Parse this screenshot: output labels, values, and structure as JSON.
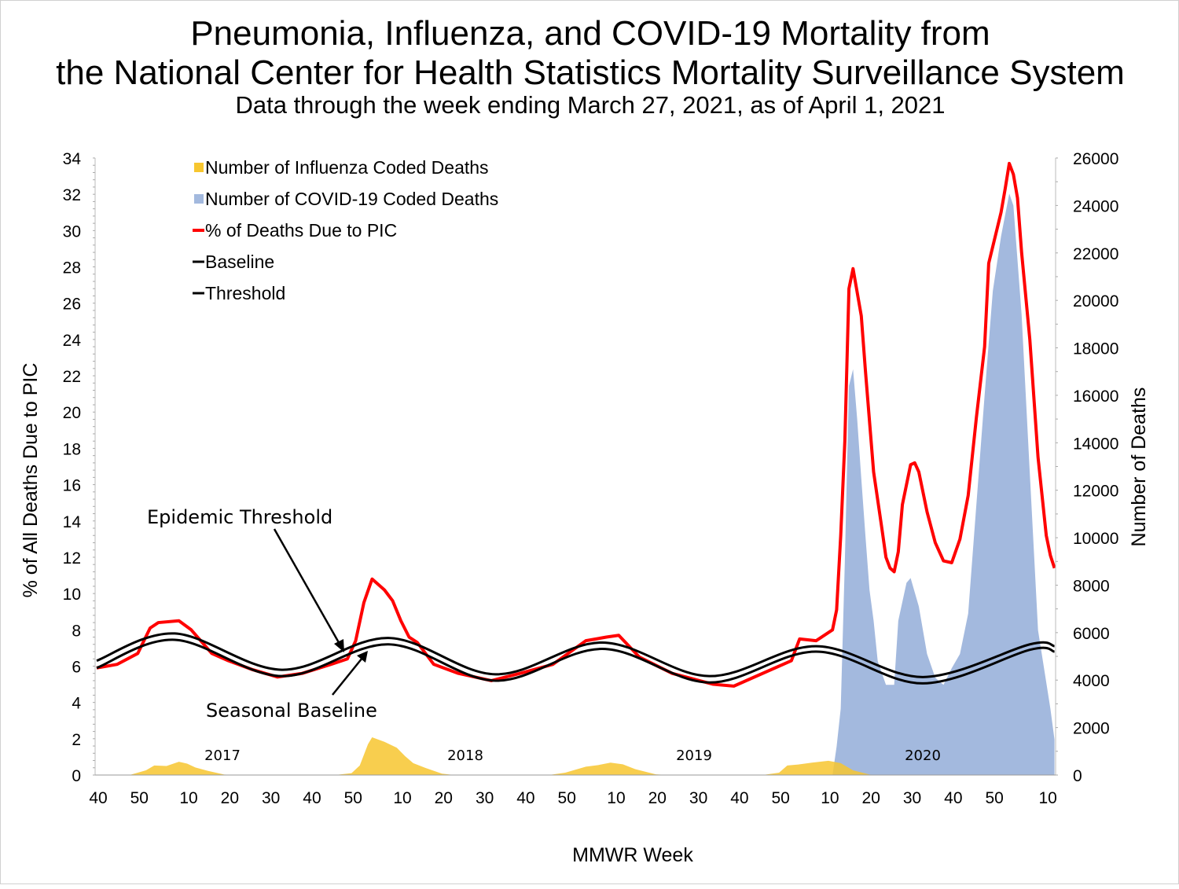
{
  "chart_data": {
    "type": "area+line",
    "title_line1": "Pneumonia, Influenza, and COVID-19 Mortality from",
    "title_line2": "the National Center for Health Statistics Mortality Surveillance System",
    "subtitle": "Data through the week ending March 27, 2021, as of April 1, 2021",
    "xlabel": "MMWR Week",
    "ylabel_left": "% of All Deaths Due to PIC",
    "ylabel_right": "Number of Deaths",
    "ylim_left": [
      0,
      34
    ],
    "yticks_left": [
      0,
      2,
      4,
      6,
      8,
      10,
      12,
      14,
      16,
      18,
      20,
      22,
      24,
      26,
      28,
      30,
      32,
      34
    ],
    "ylim_right": [
      0,
      26000
    ],
    "yticks_right": [
      0,
      2000,
      4000,
      6000,
      8000,
      10000,
      12000,
      14000,
      16000,
      18000,
      20000,
      22000,
      24000,
      26000
    ],
    "xlim": [
      "2016-40",
      "2021-12"
    ],
    "xticks": [
      {
        "x": "2016-40",
        "label": "40"
      },
      {
        "x": "2016-50",
        "label": "50"
      },
      {
        "x": "2017-10",
        "label": "10"
      },
      {
        "x": "2017-20",
        "label": "20"
      },
      {
        "x": "2017-30",
        "label": "30"
      },
      {
        "x": "2017-40",
        "label": "40"
      },
      {
        "x": "2017-50",
        "label": "50"
      },
      {
        "x": "2018-10",
        "label": "10"
      },
      {
        "x": "2018-20",
        "label": "20"
      },
      {
        "x": "2018-30",
        "label": "30"
      },
      {
        "x": "2018-40",
        "label": "40"
      },
      {
        "x": "2018-50",
        "label": "50"
      },
      {
        "x": "2019-10",
        "label": "10"
      },
      {
        "x": "2019-20",
        "label": "20"
      },
      {
        "x": "2019-30",
        "label": "30"
      },
      {
        "x": "2019-40",
        "label": "40"
      },
      {
        "x": "2019-50",
        "label": "50"
      },
      {
        "x": "2020-10",
        "label": "10"
      },
      {
        "x": "2020-20",
        "label": "20"
      },
      {
        "x": "2020-30",
        "label": "30"
      },
      {
        "x": "2020-40",
        "label": "40"
      },
      {
        "x": "2020-50",
        "label": "50"
      },
      {
        "x": "2021-10",
        "label": "10"
      }
    ],
    "year_labels": [
      "2017",
      "2018",
      "2019",
      "2020"
    ],
    "grid": false,
    "legend_placement": "top-left",
    "legend": [
      {
        "label": "Number of Influenza Coded Deaths",
        "kind": "area",
        "color": "#F7C62F"
      },
      {
        "label": "Number of COVID-19 Coded Deaths",
        "kind": "area",
        "color": "#A3B9DE"
      },
      {
        "label": "% of Deaths Due to PIC",
        "kind": "line",
        "color": "#FF0000"
      },
      {
        "label": "Baseline",
        "kind": "line",
        "color": "#000000"
      },
      {
        "label": "Threshold",
        "kind": "line",
        "color": "#000000"
      }
    ],
    "annotations": [
      {
        "text": "Epidemic Threshold",
        "points_to": "Threshold"
      },
      {
        "text": "Seasonal Baseline",
        "points_to": "Baseline"
      }
    ],
    "series": [
      {
        "name": "Number of COVID-19 Coded Deaths",
        "axis": "right",
        "kind": "area",
        "color": "#A3B9DE",
        "points": [
          [
            "2020-10",
            0
          ],
          [
            "2020-11",
            0
          ],
          [
            "2020-12",
            1200
          ],
          [
            "2020-13",
            2800
          ],
          [
            "2020-14",
            9000
          ],
          [
            "2020-15",
            16400
          ],
          [
            "2020-16",
            17100
          ],
          [
            "2020-17",
            15000
          ],
          [
            "2020-18",
            12500
          ],
          [
            "2020-19",
            10100
          ],
          [
            "2020-20",
            7800
          ],
          [
            "2020-21",
            6500
          ],
          [
            "2020-22",
            4800
          ],
          [
            "2020-24",
            3800
          ],
          [
            "2020-26",
            3800
          ],
          [
            "2020-27",
            6500
          ],
          [
            "2020-29",
            8100
          ],
          [
            "2020-30",
            8300
          ],
          [
            "2020-32",
            7100
          ],
          [
            "2020-34",
            5100
          ],
          [
            "2020-36",
            4100
          ],
          [
            "2020-38",
            3800
          ],
          [
            "2020-40",
            4500
          ],
          [
            "2020-42",
            5100
          ],
          [
            "2020-44",
            6800
          ],
          [
            "2020-46",
            11400
          ],
          [
            "2020-48",
            16000
          ],
          [
            "2020-50",
            20400
          ],
          [
            "2020-52",
            22700
          ],
          [
            "2021-01",
            24500
          ],
          [
            "2021-02",
            24000
          ],
          [
            "2021-04",
            19400
          ],
          [
            "2021-06",
            12700
          ],
          [
            "2021-08",
            6100
          ],
          [
            "2021-11",
            2800
          ],
          [
            "2021-12",
            1500
          ]
        ]
      },
      {
        "name": "Number of Influenza Coded Deaths",
        "axis": "right",
        "kind": "area",
        "color": "#F7C62F",
        "points": [
          [
            "2016-40",
            0
          ],
          [
            "2016-48",
            0
          ],
          [
            "2016-52",
            200
          ],
          [
            "2017-02",
            400
          ],
          [
            "2017-05",
            380
          ],
          [
            "2017-08",
            560
          ],
          [
            "2017-10",
            480
          ],
          [
            "2017-12",
            320
          ],
          [
            "2017-15",
            180
          ],
          [
            "2017-19",
            20
          ],
          [
            "2017-22",
            0
          ],
          [
            "2017-46",
            0
          ],
          [
            "2017-50",
            80
          ],
          [
            "2017-52",
            400
          ],
          [
            "2018-02",
            1300
          ],
          [
            "2018-03",
            1590
          ],
          [
            "2018-06",
            1400
          ],
          [
            "2018-09",
            1150
          ],
          [
            "2018-11",
            800
          ],
          [
            "2018-13",
            500
          ],
          [
            "2018-16",
            300
          ],
          [
            "2018-20",
            60
          ],
          [
            "2018-23",
            0
          ],
          [
            "2018-46",
            0
          ],
          [
            "2018-50",
            100
          ],
          [
            "2019-03",
            350
          ],
          [
            "2019-06",
            420
          ],
          [
            "2019-09",
            520
          ],
          [
            "2019-12",
            450
          ],
          [
            "2019-15",
            250
          ],
          [
            "2019-20",
            30
          ],
          [
            "2019-23",
            0
          ],
          [
            "2019-46",
            0
          ],
          [
            "2019-50",
            100
          ],
          [
            "2019-52",
            400
          ],
          [
            "2020-03",
            450
          ],
          [
            "2020-06",
            520
          ],
          [
            "2020-10",
            600
          ],
          [
            "2020-13",
            500
          ],
          [
            "2020-16",
            200
          ],
          [
            "2020-20",
            20
          ],
          [
            "2020-23",
            0
          ],
          [
            "2021-12",
            0
          ]
        ]
      },
      {
        "name": "% of Deaths Due to PIC",
        "axis": "left",
        "kind": "line",
        "color": "#FF0000",
        "points": [
          [
            "2016-40",
            5.9
          ],
          [
            "2016-45",
            6.1
          ],
          [
            "2016-50",
            6.7
          ],
          [
            "2017-01",
            8.1
          ],
          [
            "2017-03",
            8.4
          ],
          [
            "2017-08",
            8.5
          ],
          [
            "2017-11",
            8.0
          ],
          [
            "2017-16",
            6.7
          ],
          [
            "2017-20",
            6.3
          ],
          [
            "2017-26",
            5.8
          ],
          [
            "2017-32",
            5.4
          ],
          [
            "2017-38",
            5.6
          ],
          [
            "2017-45",
            6.1
          ],
          [
            "2017-49",
            6.4
          ],
          [
            "2017-51",
            7.4
          ],
          [
            "2018-01",
            9.5
          ],
          [
            "2018-03",
            10.8
          ],
          [
            "2018-06",
            10.2
          ],
          [
            "2018-08",
            9.6
          ],
          [
            "2018-10",
            8.5
          ],
          [
            "2018-12",
            7.6
          ],
          [
            "2018-14",
            7.3
          ],
          [
            "2018-18",
            6.1
          ],
          [
            "2018-24",
            5.6
          ],
          [
            "2018-32",
            5.2
          ],
          [
            "2018-39",
            5.6
          ],
          [
            "2018-47",
            6.1
          ],
          [
            "2019-03",
            7.4
          ],
          [
            "2019-08",
            7.6
          ],
          [
            "2019-11",
            7.7
          ],
          [
            "2019-16",
            6.5
          ],
          [
            "2019-24",
            5.6
          ],
          [
            "2019-34",
            5.0
          ],
          [
            "2019-39",
            4.9
          ],
          [
            "2019-45",
            5.5
          ],
          [
            "2020-01",
            6.3
          ],
          [
            "2020-03",
            7.5
          ],
          [
            "2020-07",
            7.4
          ],
          [
            "2020-11",
            8.0
          ],
          [
            "2020-12",
            9.1
          ],
          [
            "2020-13",
            13.2
          ],
          [
            "2020-14",
            18.4
          ],
          [
            "2020-15",
            26.8
          ],
          [
            "2020-16",
            27.9
          ],
          [
            "2020-18",
            25.3
          ],
          [
            "2020-19",
            22.3
          ],
          [
            "2020-21",
            16.7
          ],
          [
            "2020-23",
            13.6
          ],
          [
            "2020-24",
            12.0
          ],
          [
            "2020-25",
            11.4
          ],
          [
            "2020-26",
            11.2
          ],
          [
            "2020-27",
            12.3
          ],
          [
            "2020-28",
            14.9
          ],
          [
            "2020-30",
            17.1
          ],
          [
            "2020-31",
            17.2
          ],
          [
            "2020-32",
            16.7
          ],
          [
            "2020-34",
            14.5
          ],
          [
            "2020-36",
            12.8
          ],
          [
            "2020-38",
            11.8
          ],
          [
            "2020-40",
            11.7
          ],
          [
            "2020-42",
            13.0
          ],
          [
            "2020-44",
            15.4
          ],
          [
            "2020-46",
            19.7
          ],
          [
            "2020-48",
            23.6
          ],
          [
            "2020-49",
            28.2
          ],
          [
            "2020-52",
            31.0
          ],
          [
            "2020-53",
            32.3
          ],
          [
            "2021-01",
            33.7
          ],
          [
            "2021-02",
            33.1
          ],
          [
            "2021-03",
            31.8
          ],
          [
            "2021-04",
            28.8
          ],
          [
            "2021-06",
            24.0
          ],
          [
            "2021-08",
            17.5
          ],
          [
            "2021-10",
            13.2
          ],
          [
            "2021-11",
            12.1
          ],
          [
            "2021-12",
            11.4
          ]
        ]
      },
      {
        "name": "Threshold",
        "axis": "left",
        "kind": "line",
        "color": "#000000",
        "points": [
          [
            "2016-40",
            6.3
          ],
          [
            "2017-07",
            7.8
          ],
          [
            "2017-33",
            5.8
          ],
          [
            "2018-07",
            7.55
          ],
          [
            "2018-33",
            5.55
          ],
          [
            "2019-07",
            7.3
          ],
          [
            "2019-33",
            5.45
          ],
          [
            "2020-07",
            7.1
          ],
          [
            "2020-33",
            5.4
          ],
          [
            "2021-06",
            7.2
          ],
          [
            "2021-12",
            7.1
          ]
        ]
      },
      {
        "name": "Baseline",
        "axis": "left",
        "kind": "line",
        "color": "#000000",
        "points": [
          [
            "2016-40",
            5.9
          ],
          [
            "2017-07",
            7.45
          ],
          [
            "2017-33",
            5.45
          ],
          [
            "2018-07",
            7.2
          ],
          [
            "2018-33",
            5.2
          ],
          [
            "2019-07",
            6.95
          ],
          [
            "2019-33",
            5.1
          ],
          [
            "2020-07",
            6.8
          ],
          [
            "2020-33",
            5.05
          ],
          [
            "2021-06",
            6.9
          ],
          [
            "2021-12",
            6.8
          ]
        ]
      }
    ]
  }
}
